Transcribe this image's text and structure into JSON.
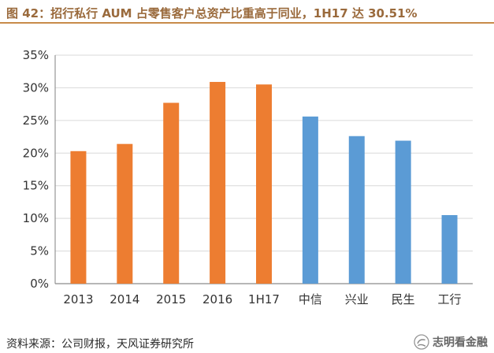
{
  "figure": {
    "title": "图 42：招行私行 AUM 占零售客户总资产比重高于同业，1H17 达 30.51%",
    "source": "资料来源：公司财报，天风证券研究所",
    "watermark": "志明看金融"
  },
  "colors": {
    "orange": "#ED7D31",
    "blue": "#5B9BD5",
    "grid": "#d9d9d9",
    "axis": "#8c8c8c",
    "title_accent": "#9a6a3c"
  },
  "icons": {
    "watermark_icon": "wechat-public-account-icon"
  },
  "chart_data": {
    "type": "bar",
    "title": "",
    "xlabel": "",
    "ylabel": "",
    "categories": [
      "2013",
      "2014",
      "2015",
      "2016",
      "1H17",
      "中信",
      "兴业",
      "民生",
      "工行"
    ],
    "values": [
      20.3,
      21.4,
      27.7,
      30.9,
      30.51,
      25.6,
      22.6,
      21.9,
      10.5
    ],
    "bar_colors": [
      "#ED7D31",
      "#ED7D31",
      "#ED7D31",
      "#ED7D31",
      "#ED7D31",
      "#5B9BD5",
      "#5B9BD5",
      "#5B9BD5",
      "#5B9BD5"
    ],
    "ylim": [
      0,
      35
    ],
    "y_ticks": [
      0,
      5,
      10,
      15,
      20,
      25,
      30,
      35
    ],
    "y_tick_labels": [
      "0%",
      "5%",
      "10%",
      "15%",
      "20%",
      "25%",
      "30%",
      "35%"
    ],
    "grid": true,
    "legend": "none",
    "unit": "%"
  }
}
